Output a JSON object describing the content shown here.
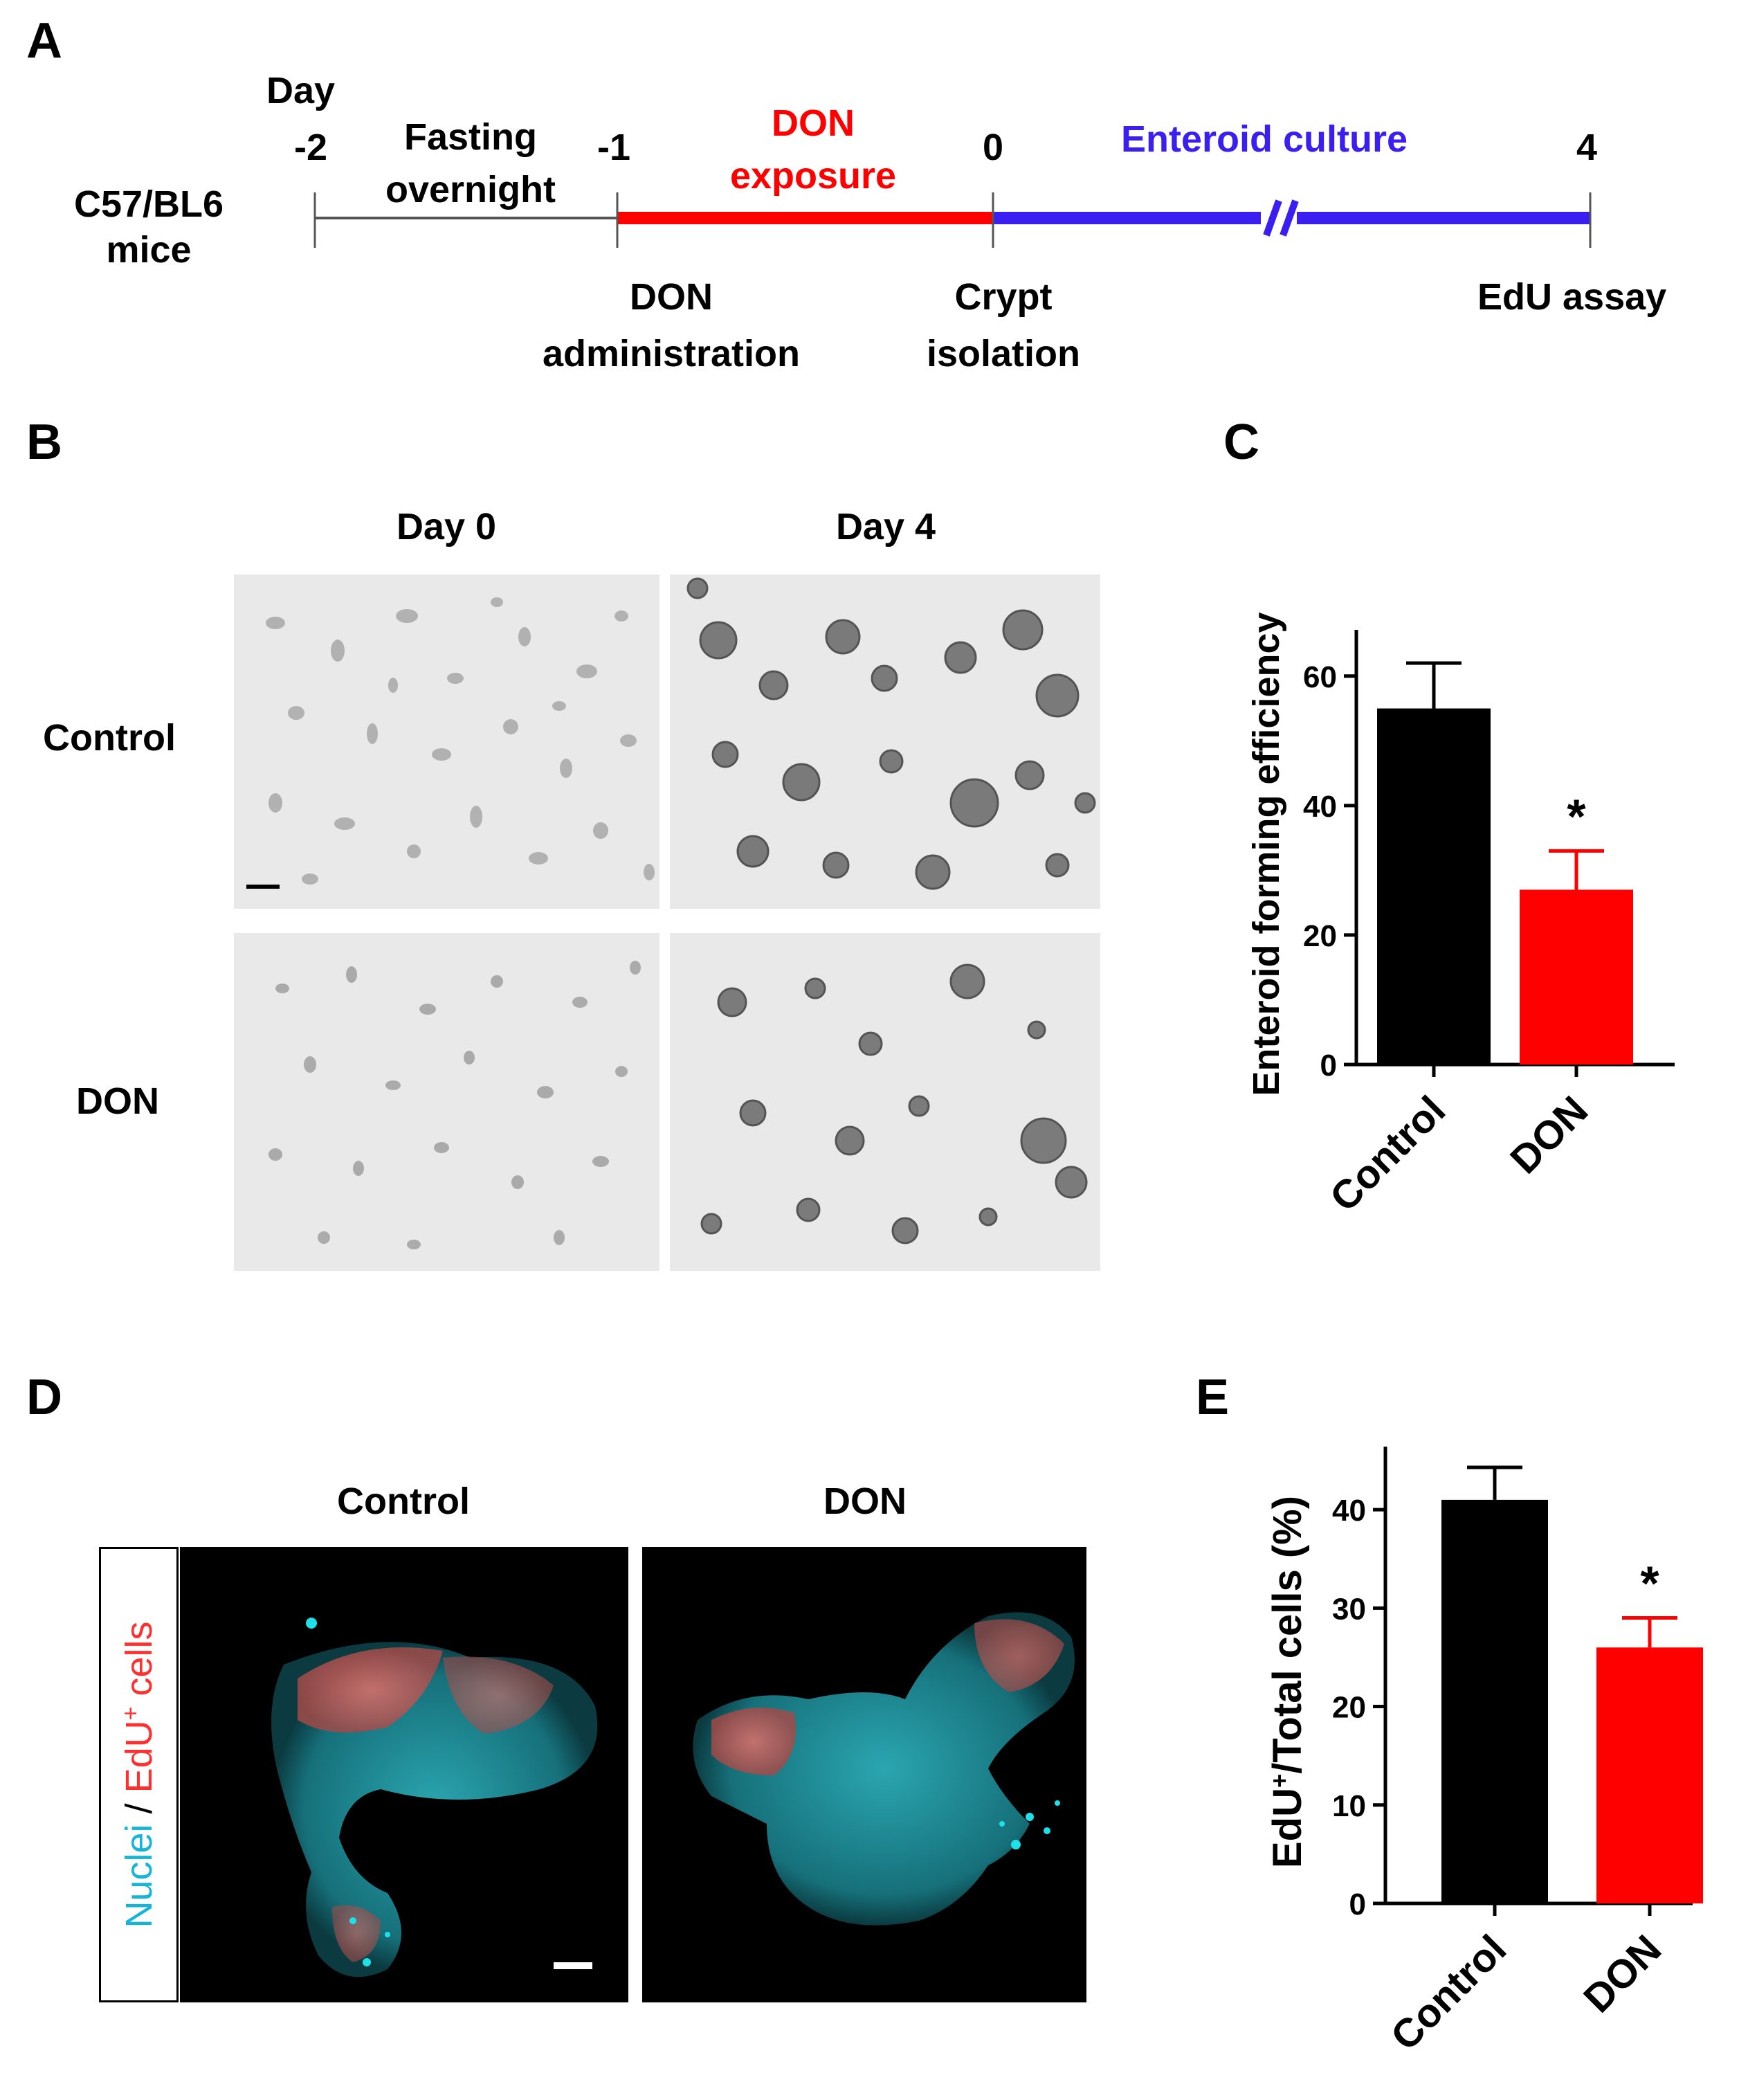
{
  "panels": {
    "A": {
      "letter": "A",
      "mouse_label": [
        "C57/BL6",
        "mice"
      ],
      "day_label": "Day",
      "ticks": [
        "-2",
        "-1",
        "0",
        "4"
      ],
      "phases": {
        "fasting": [
          "Fasting",
          "overnight"
        ],
        "don_exposure": [
          "DON",
          "exposure"
        ],
        "culture": "Enteroid culture"
      },
      "events": {
        "administration": [
          "DON",
          "administration"
        ],
        "isolation": [
          "Crypt",
          "isolation"
        ],
        "assay": "EdU assay"
      },
      "colors": {
        "don": "#ff0000",
        "culture": "#3b1ff0",
        "fasting": "#555555"
      }
    },
    "B": {
      "letter": "B",
      "columns": [
        "Day 0",
        "Day 4"
      ],
      "rows": [
        "Control",
        "DON"
      ]
    },
    "D": {
      "letter": "D",
      "columns": [
        "Control",
        "DON"
      ],
      "side_label": {
        "nuclei": "Nuclei",
        "sep": " / ",
        "edu": "EdU",
        "sup": "+",
        "cells": " cells"
      },
      "colors": {
        "nuclei": "#16b4d8",
        "edu": "#ff3030"
      }
    }
  },
  "chart_data": [
    {
      "panel": "C",
      "type": "bar",
      "categories": [
        "Control",
        "DON"
      ],
      "values": [
        55,
        27
      ],
      "errors": [
        7,
        6
      ],
      "colors": [
        "#000000",
        "#ff0000"
      ],
      "ylabel": "Enteroid forming efficiency",
      "ylim": [
        0,
        65
      ],
      "yticks": [
        0,
        20,
        40,
        60
      ],
      "annotations": [
        "",
        "*"
      ]
    },
    {
      "panel": "E",
      "type": "bar",
      "categories": [
        "Control",
        "DON"
      ],
      "values": [
        41,
        26
      ],
      "errors": [
        3.3,
        3
      ],
      "colors": [
        "#000000",
        "#ff0000"
      ],
      "ylabel": {
        "main": "EdU",
        "sup": "+",
        "rest": "/Total cells (%)"
      },
      "ylim": [
        0,
        45
      ],
      "yticks": [
        0,
        10,
        20,
        30,
        40
      ],
      "annotations": [
        "",
        "*"
      ]
    }
  ]
}
